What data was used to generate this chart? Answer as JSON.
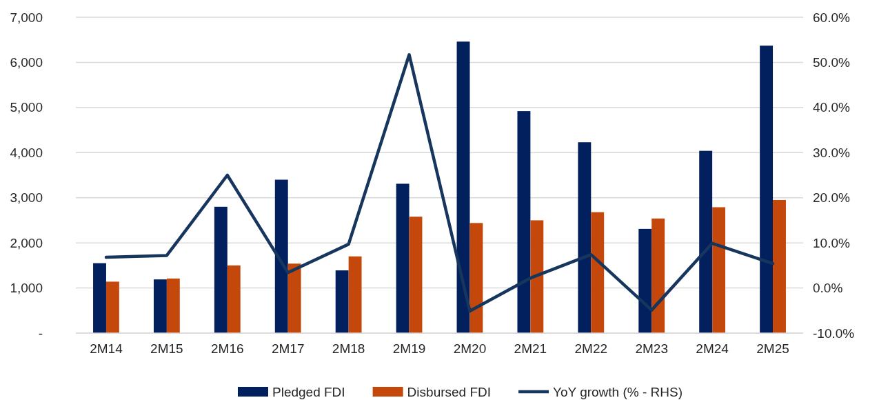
{
  "chart_data": {
    "type": "bar",
    "categories": [
      "2M14",
      "2M15",
      "2M16",
      "2M17",
      "2M18",
      "2M19",
      "2M20",
      "2M21",
      "2M22",
      "2M23",
      "2M24",
      "2M25"
    ],
    "series": [
      {
        "name": "Pledged FDI",
        "color": "#021f5e",
        "values": [
          1550,
          1190,
          2800,
          3400,
          1390,
          3310,
          6460,
          4920,
          4230,
          2310,
          4040,
          6370
        ]
      },
      {
        "name": "Disbursed FDI",
        "color": "#c4480c",
        "values": [
          1140,
          1210,
          1500,
          1540,
          1700,
          2580,
          2440,
          2500,
          2680,
          2540,
          2790,
          2950
        ]
      },
      {
        "name": "YoY growth (% - RHS)",
        "type": "line",
        "axis": "y2",
        "color": "#17365d",
        "values": [
          6.8,
          7.2,
          25.0,
          3.4,
          9.7,
          51.7,
          -5.1,
          2.2,
          7.4,
          -4.9,
          9.9,
          5.4
        ]
      }
    ],
    "ylim": [
      0,
      7000
    ],
    "yticks": [
      {
        "value": 0,
        "label": "-"
      },
      {
        "value": 1000,
        "label": "1,000"
      },
      {
        "value": 2000,
        "label": "2,000"
      },
      {
        "value": 3000,
        "label": "3,000"
      },
      {
        "value": 4000,
        "label": "4,000"
      },
      {
        "value": 5000,
        "label": "5,000"
      },
      {
        "value": 6000,
        "label": "6,000"
      },
      {
        "value": 7000,
        "label": "7,000"
      }
    ],
    "y2lim": [
      -10,
      60
    ],
    "y2ticks": [
      {
        "value": -10,
        "label": "-10.0%"
      },
      {
        "value": 0,
        "label": "0.0%"
      },
      {
        "value": 10,
        "label": "10.0%"
      },
      {
        "value": 20,
        "label": "20.0%"
      },
      {
        "value": 30,
        "label": "30.0%"
      },
      {
        "value": 40,
        "label": "40.0%"
      },
      {
        "value": 50,
        "label": "50.0%"
      },
      {
        "value": 60,
        "label": "60.0%"
      }
    ],
    "grid": "y",
    "legend": "bottom",
    "marker": "none",
    "line_style": "solid"
  }
}
